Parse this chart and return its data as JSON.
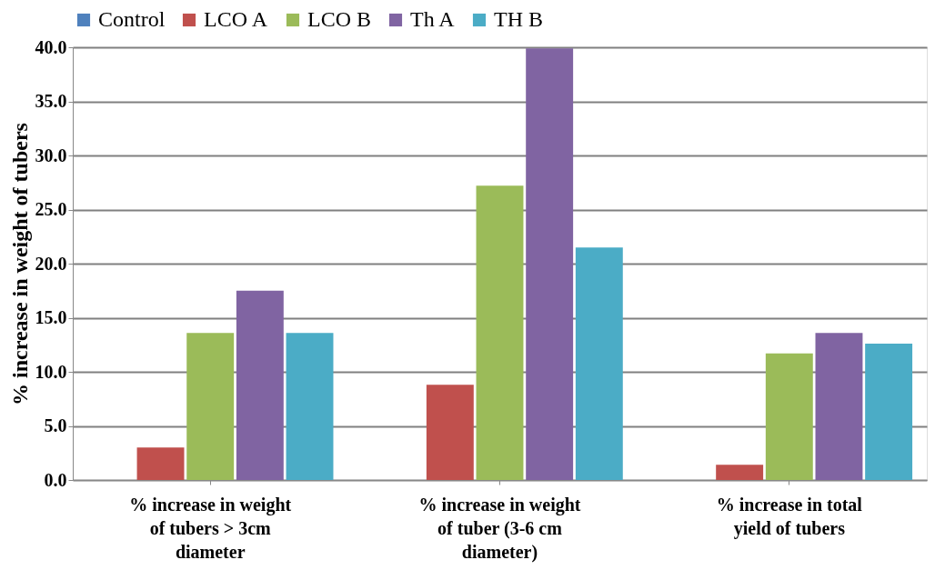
{
  "chart_data": {
    "type": "bar",
    "ylabel": "% increase in weight of tubers",
    "categories": [
      "% increase in weight of tubers > 3cm diameter",
      "% increase in weight of tuber (3-6 cm diameter)",
      "% increase in total yield of tubers"
    ],
    "series": [
      {
        "name": "Control",
        "color": "#4f81bd",
        "values": [
          0,
          0,
          0
        ]
      },
      {
        "name": "LCO A",
        "color": "#c0504d",
        "values": [
          3.0,
          8.8,
          1.4
        ]
      },
      {
        "name": "LCO B",
        "color": "#9bbb59",
        "values": [
          13.6,
          27.2,
          11.7
        ]
      },
      {
        "name": "Th A",
        "color": "#8064a2",
        "values": [
          17.5,
          39.9,
          13.6
        ]
      },
      {
        "name": "TH B",
        "color": "#4bacc6",
        "values": [
          13.6,
          21.5,
          12.6
        ]
      }
    ],
    "ylim": [
      0,
      40
    ],
    "yticks": [
      {
        "value": 0,
        "label": "0.0"
      },
      {
        "value": 5,
        "label": "5.0"
      },
      {
        "value": 10,
        "label": "10.0"
      },
      {
        "value": 15,
        "label": "15.0"
      },
      {
        "value": 20,
        "label": "20.0"
      },
      {
        "value": 25,
        "label": "25.0"
      },
      {
        "value": 30,
        "label": "30.0"
      },
      {
        "value": 35,
        "label": "35.0"
      },
      {
        "value": 40,
        "label": "40.0"
      }
    ],
    "grid": "y",
    "legend": "top"
  }
}
